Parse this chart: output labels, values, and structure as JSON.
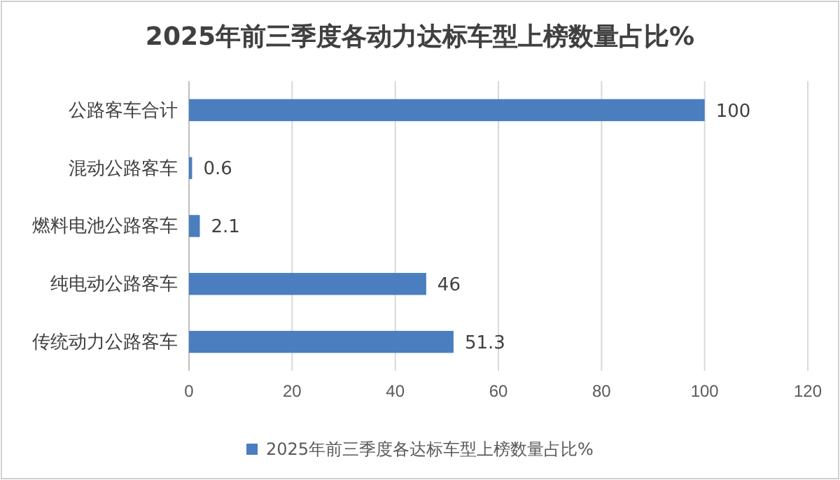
{
  "chart_data": {
    "type": "bar",
    "orientation": "horizontal",
    "title": "2025年前三季度各动力达标车型上榜数量占比%",
    "categories": [
      "公路客车合计",
      "混动公路客车",
      "燃料电池公路客车",
      "纯电动公路客车",
      "传统动力公路客车"
    ],
    "series": [
      {
        "name": "2025年前三季度各达标车型上榜数量占比%",
        "color": "#4a7ebf",
        "values": [
          100,
          0.6,
          2.1,
          46,
          51.3
        ]
      }
    ],
    "xlim": [
      0,
      120
    ],
    "xticks": [
      0,
      20,
      40,
      60,
      80,
      100,
      120
    ],
    "grid": "x",
    "legend": "bottom",
    "data_labels": true
  }
}
